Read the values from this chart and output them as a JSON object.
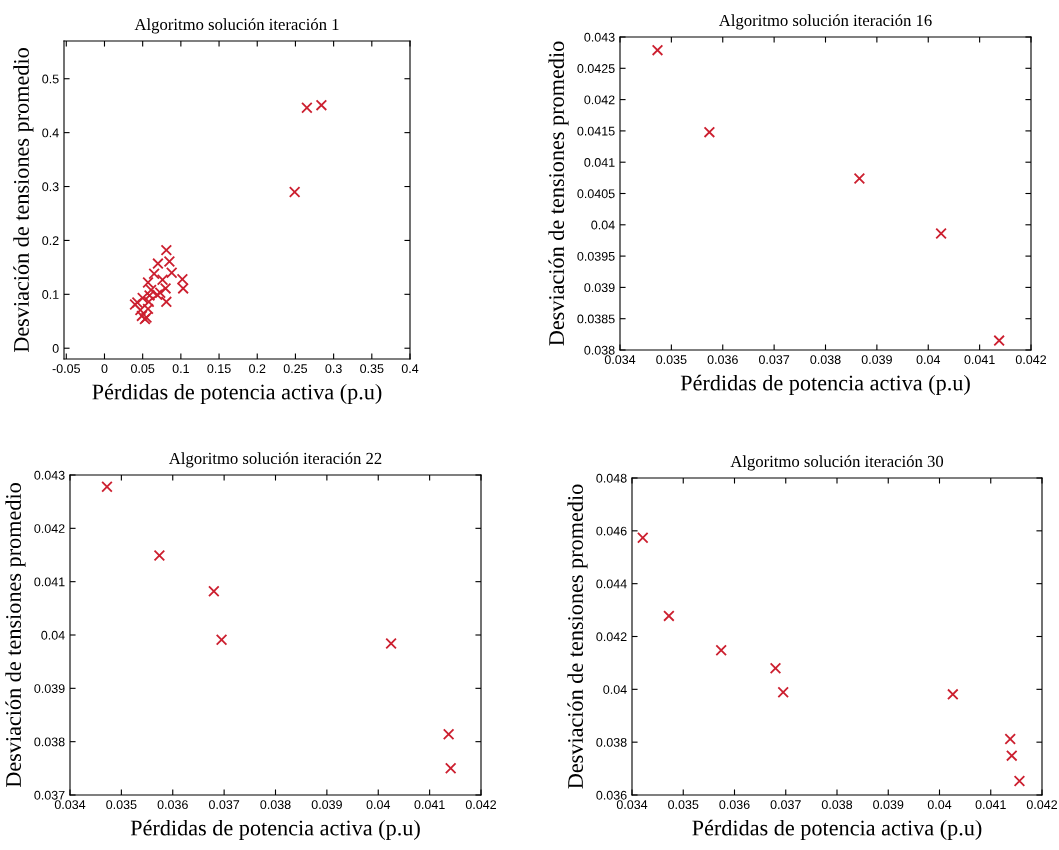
{
  "chart_data": [
    {
      "type": "scatter",
      "title": "Algoritmo solución iteración 1",
      "xlabel": "Pérdidas de potencia activa (p.u)",
      "ylabel": "Desviación de tensiones promedio",
      "marker": "cross",
      "grid": false,
      "xlim": [
        -0.053,
        0.4
      ],
      "xticks": [
        -0.05,
        0,
        0.05,
        0.1,
        0.15,
        0.2,
        0.25,
        0.3,
        0.35,
        0.4
      ],
      "ylim": [
        -0.02,
        0.57
      ],
      "yticks": [
        0,
        0.1,
        0.2,
        0.3,
        0.4,
        0.5
      ],
      "series": [
        {
          "color": "#cc1f2f",
          "x": [
            0.265,
            0.284,
            0.249,
            0.081,
            0.085,
            0.088,
            0.07,
            0.065,
            0.057,
            0.076,
            0.102,
            0.103,
            0.08,
            0.081,
            0.073,
            0.069,
            0.061,
            0.059,
            0.058,
            0.05,
            0.04,
            0.043,
            0.047,
            0.057,
            0.049,
            0.053,
            0.055
          ],
          "values": [
            0.446,
            0.451,
            0.29,
            0.182,
            0.161,
            0.14,
            0.157,
            0.138,
            0.122,
            0.127,
            0.128,
            0.111,
            0.111,
            0.086,
            0.103,
            0.099,
            0.108,
            0.098,
            0.086,
            0.093,
            0.081,
            0.085,
            0.071,
            0.073,
            0.06,
            0.054,
            0.057
          ]
        }
      ]
    },
    {
      "type": "scatter",
      "title": "Algoritmo solución iteración 16",
      "xlabel": "Pérdidas de potencia activa (p.u)",
      "ylabel": "Desviación de tensiones promedio",
      "marker": "cross",
      "grid": false,
      "xlim": [
        0.034,
        0.042
      ],
      "xticks": [
        0.034,
        0.035,
        0.036,
        0.037,
        0.038,
        0.039,
        0.04,
        0.041,
        0.042
      ],
      "ylim": [
        0.038,
        0.043
      ],
      "yticks": [
        0.038,
        0.0385,
        0.039,
        0.0395,
        0.04,
        0.0405,
        0.041,
        0.0415,
        0.042,
        0.0425,
        0.043
      ],
      "series": [
        {
          "color": "#cc1f2f",
          "x": [
            0.03473,
            0.03574,
            0.03866,
            0.04025,
            0.04138
          ],
          "values": [
            0.04279,
            0.04148,
            0.04074,
            0.03986,
            0.03815
          ]
        }
      ]
    },
    {
      "type": "scatter",
      "title": "Algoritmo solución iteración 22",
      "xlabel": "Pérdidas de potencia activa (p.u)",
      "ylabel": "Desviación de tensiones promedio",
      "marker": "cross",
      "grid": false,
      "xlim": [
        0.034,
        0.042
      ],
      "xticks": [
        0.034,
        0.035,
        0.036,
        0.037,
        0.038,
        0.039,
        0.04,
        0.041,
        0.042
      ],
      "ylim": [
        0.037,
        0.043
      ],
      "yticks": [
        0.037,
        0.038,
        0.039,
        0.04,
        0.041,
        0.042,
        0.043
      ],
      "series": [
        {
          "color": "#cc1f2f",
          "x": [
            0.03472,
            0.03574,
            0.0368,
            0.03695,
            0.04025,
            0.04137,
            0.04141
          ],
          "values": [
            0.04278,
            0.04149,
            0.04082,
            0.03991,
            0.03984,
            0.03814,
            0.0375
          ]
        }
      ]
    },
    {
      "type": "scatter",
      "title": "Algoritmo solución iteración 30",
      "xlabel": "Pérdidas de potencia activa (p.u)",
      "ylabel": "Desviación de tensiones promedio",
      "marker": "cross",
      "grid": false,
      "xlim": [
        0.034,
        0.042
      ],
      "xticks": [
        0.034,
        0.035,
        0.036,
        0.037,
        0.038,
        0.039,
        0.04,
        0.041,
        0.042
      ],
      "ylim": [
        0.036,
        0.048
      ],
      "yticks": [
        0.036,
        0.038,
        0.04,
        0.042,
        0.044,
        0.046,
        0.048
      ],
      "series": [
        {
          "color": "#cc1f2f",
          "x": [
            0.03421,
            0.03472,
            0.03574,
            0.0368,
            0.03695,
            0.04026,
            0.04138,
            0.04141,
            0.04156
          ],
          "values": [
            0.04574,
            0.04278,
            0.04148,
            0.0408,
            0.03989,
            0.03981,
            0.03812,
            0.03749,
            0.03653
          ]
        }
      ]
    }
  ]
}
